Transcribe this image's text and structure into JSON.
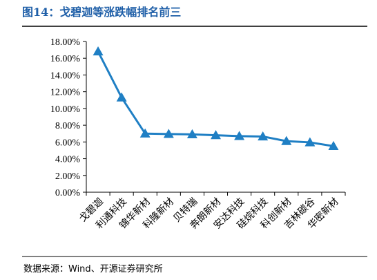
{
  "figure": {
    "title": "图14：戈碧迦等涨跌幅排名前三",
    "source": "数据来源：Wind、开源证券研究所"
  },
  "colors": {
    "title": "#1f5fa8",
    "series": "#1f7fc4",
    "axis": "#000000",
    "rule": "#000000"
  },
  "chart_data": {
    "type": "line",
    "title": "",
    "xlabel": "",
    "ylabel": "",
    "categories": [
      "戈碧迦",
      "利通科技",
      "锦华新材",
      "科隆新材",
      "贝特瑞",
      "奔朗新材",
      "安达科技",
      "硅烷科技",
      "科创新材",
      "吉林碳谷",
      "华密新材"
    ],
    "values": [
      16.8,
      11.3,
      7.0,
      6.95,
      6.9,
      6.8,
      6.7,
      6.65,
      6.1,
      5.95,
      5.5
    ],
    "value_unit": "%",
    "marker": "triangle",
    "ylim": [
      0,
      18
    ],
    "ytick_step": 2,
    "ytick_labels": [
      "0.00%",
      "2.00%",
      "4.00%",
      "6.00%",
      "8.00%",
      "10.00%",
      "12.00%",
      "14.00%",
      "16.00%",
      "18.00%"
    ],
    "grid": false,
    "legend": "none"
  }
}
